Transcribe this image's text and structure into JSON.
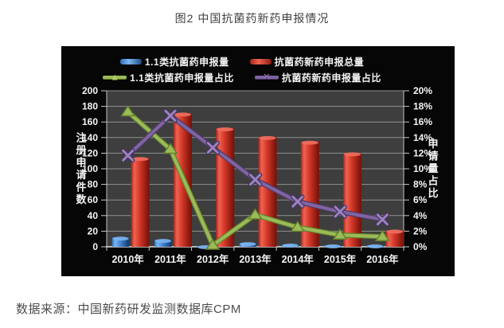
{
  "title": "图2 中国抗菌药新药申报情况",
  "source_note": "数据来源：中国新药研发监测数据库CPM",
  "colors": {
    "page_bg": "#ffffff",
    "chart_bg": "#060606",
    "plot_bg": "#3e3e3e",
    "gridline": "#909090",
    "axis_text": "#f5f5f5",
    "bar_blue": "#4a86d8",
    "bar_red": "#d63a2a",
    "line_green": "#9bbb59",
    "line_purple": "#8064a2"
  },
  "chart_data": {
    "type": "bar+line-combo",
    "categories": [
      "2010年",
      "2011年",
      "2012年",
      "2013年",
      "2014年",
      "2015年",
      "2016年"
    ],
    "left_axis": {
      "title": "注册申请件数",
      "min": 0,
      "max": 200,
      "step": 20
    },
    "right_axis": {
      "title": "申请量占比",
      "min": 0,
      "max": 20,
      "step": 2,
      "suffix": "%"
    },
    "grid": true,
    "legend_position": "top",
    "series": [
      {
        "name": "1.1类抗菌药申报量",
        "type": "bar",
        "axis": "left",
        "color": "#4a86d8",
        "values": [
          12,
          9,
          1,
          5,
          3,
          2,
          2
        ]
      },
      {
        "name": "抗菌药新药申报总量",
        "type": "bar",
        "axis": "left",
        "color": "#d63a2a",
        "values": [
          114,
          171,
          152,
          141,
          135,
          120,
          21
        ]
      },
      {
        "name": "1.1类抗菌药申报量占比",
        "type": "line",
        "axis": "right",
        "color": "#9bbb59",
        "marker": "triangle",
        "values": [
          17.3,
          12.5,
          0.2,
          4.1,
          2.5,
          1.5,
          1.3
        ]
      },
      {
        "name": "抗菌药新药申报量占比",
        "type": "line",
        "axis": "right",
        "color": "#8064a2",
        "marker": "x",
        "values": [
          11.7,
          16.8,
          12.7,
          8.6,
          5.8,
          4.5,
          3.5
        ]
      }
    ]
  }
}
